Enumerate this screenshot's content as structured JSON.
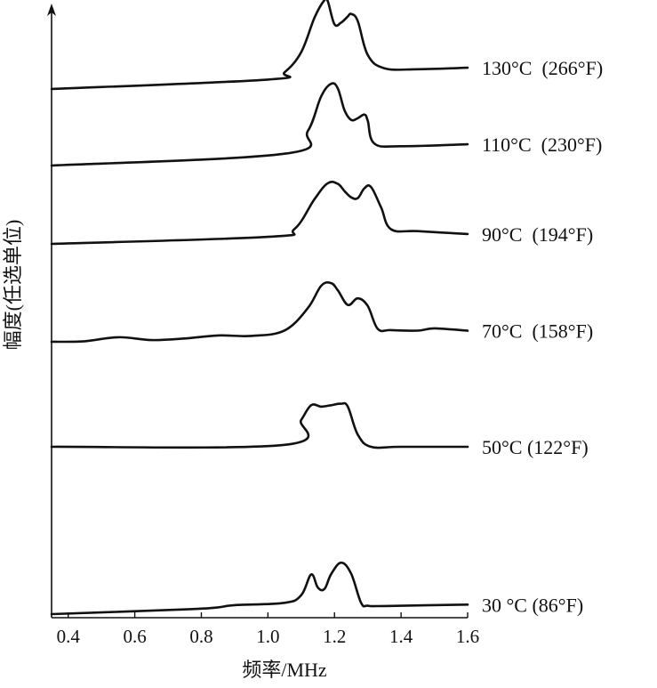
{
  "chart_data": {
    "type": "line",
    "title": "",
    "xlabel": "频率/MHz",
    "ylabel": "幅度(任选单位)",
    "xlim": [
      0.35,
      1.6
    ],
    "xticks": [
      0.4,
      0.6,
      0.8,
      1.0,
      1.2,
      1.4,
      1.6
    ],
    "xtick_labels": [
      "0.4",
      "0.6",
      "0.8",
      "1.0",
      "1.2",
      "1.4",
      "1.6"
    ],
    "y_units": "arbitrary (traces vertically offset)",
    "grid": false,
    "legend": "none (series labelled at right end of each trace)",
    "series": [
      {
        "name": "130°C  (266°F)",
        "baseline": 5,
        "x": [
          0.35,
          1.0,
          1.05,
          1.1,
          1.14,
          1.17,
          1.18,
          1.2,
          1.22,
          1.24,
          1.25,
          1.27,
          1.3,
          1.35,
          1.45,
          1.6
        ],
        "y": [
          0.0,
          0.06,
          0.2,
          0.6,
          1.3,
          1.65,
          1.62,
          1.15,
          1.18,
          1.3,
          1.35,
          1.2,
          0.5,
          0.22,
          0.18,
          0.18
        ]
      },
      {
        "name": "110°C  (230°F)",
        "baseline": 4,
        "x": [
          0.35,
          1.05,
          1.12,
          1.16,
          1.19,
          1.21,
          1.23,
          1.25,
          1.27,
          1.29,
          1.3,
          1.32,
          1.4,
          1.6
        ],
        "y": [
          0.0,
          0.1,
          0.55,
          1.25,
          1.5,
          1.4,
          0.95,
          0.75,
          0.78,
          0.85,
          0.72,
          0.25,
          0.18,
          0.18
        ]
      },
      {
        "name": "90°C  (194°F)",
        "baseline": 3,
        "x": [
          0.35,
          1.0,
          1.08,
          1.14,
          1.18,
          1.21,
          1.23,
          1.25,
          1.27,
          1.29,
          1.31,
          1.34,
          1.37,
          1.45,
          1.6
        ],
        "y": [
          0.0,
          0.05,
          0.2,
          0.8,
          1.12,
          1.1,
          0.95,
          0.82,
          0.8,
          1.0,
          1.02,
          0.6,
          0.15,
          0.1,
          0.02
        ]
      },
      {
        "name": "70°C  (158°F)",
        "baseline": 2,
        "x": [
          0.35,
          0.45,
          0.55,
          0.65,
          0.75,
          0.85,
          0.95,
          1.05,
          1.12,
          1.16,
          1.19,
          1.21,
          1.24,
          1.27,
          1.3,
          1.33,
          1.37,
          1.45,
          1.5,
          1.6
        ],
        "y": [
          0.0,
          0.0,
          0.07,
          0.0,
          0.02,
          0.07,
          0.05,
          0.15,
          0.6,
          1.05,
          1.1,
          0.95,
          0.65,
          0.78,
          0.62,
          0.15,
          0.12,
          0.1,
          0.14,
          0.08
        ]
      },
      {
        "name": "50°C (122°F)",
        "baseline": 1,
        "x": [
          0.35,
          1.05,
          1.1,
          1.13,
          1.16,
          1.19,
          1.22,
          1.24,
          1.27,
          1.31,
          1.4,
          1.6
        ],
        "y": [
          0.0,
          0.04,
          0.55,
          0.85,
          0.82,
          0.85,
          0.88,
          0.82,
          0.25,
          0.0,
          0.0,
          0.0
        ]
      },
      {
        "name": "30 °C (86°F)",
        "baseline": 0,
        "x": [
          0.35,
          0.75,
          0.85,
          0.9,
          1.05,
          1.1,
          1.13,
          1.15,
          1.17,
          1.19,
          1.22,
          1.25,
          1.28,
          1.3,
          1.35,
          1.6
        ],
        "y": [
          0.0,
          0.05,
          0.08,
          0.12,
          0.15,
          0.3,
          0.72,
          0.45,
          0.42,
          0.72,
          0.95,
          0.72,
          0.12,
          0.06,
          0.05,
          0.05
        ]
      }
    ]
  }
}
